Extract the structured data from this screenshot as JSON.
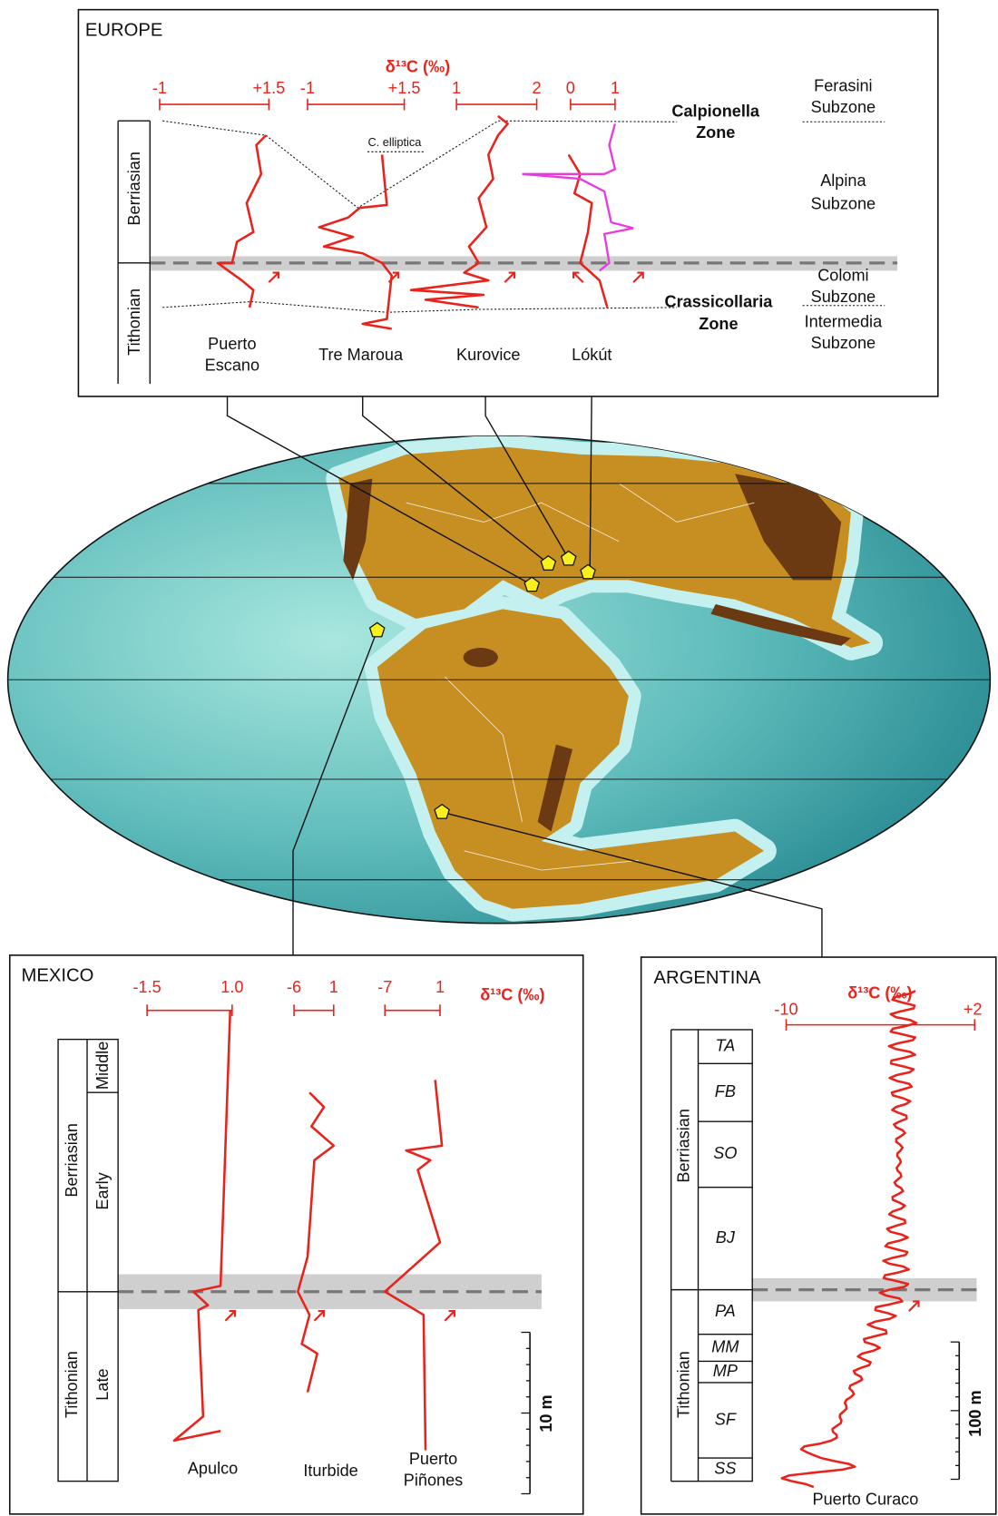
{
  "europe": {
    "title": "EUROPE",
    "axis_label": "δ¹³C (‰)",
    "scales": [
      [
        "-1",
        "+1.5"
      ],
      [
        "-1",
        "+1.5"
      ],
      [
        "1",
        "2"
      ],
      [
        "0",
        "1"
      ]
    ],
    "stages": [
      "Berriasian",
      "Tithonian"
    ],
    "annotation": "C. elliptica",
    "sections": [
      [
        "Puerto",
        "Escano"
      ],
      [
        "Tre Maroua"
      ],
      [
        "Kurovice"
      ],
      [
        "Lókút"
      ]
    ],
    "zones": [
      [
        "Calpionella",
        "Zone"
      ],
      [
        "Crassicollaria",
        "Zone"
      ]
    ],
    "subzones": [
      [
        "Ferasini",
        "Subzone"
      ],
      [
        "Alpina",
        "Subzone"
      ],
      [
        "Colomi",
        "Subzone"
      ],
      [
        "Intermedia",
        "Subzone"
      ]
    ]
  },
  "mexico": {
    "title": "MEXICO",
    "axis_label": "δ¹³C (‰)",
    "scales": [
      [
        "-1.5",
        "1.0"
      ],
      [
        "-6",
        "1"
      ],
      [
        "-7",
        "1"
      ]
    ],
    "stages": [
      "Berriasian",
      "Tithonian"
    ],
    "substages": [
      "Middle",
      "Early",
      "Late"
    ],
    "sections": [
      [
        "Apulco"
      ],
      [
        "Iturbide"
      ],
      [
        "Puerto",
        "Piñones"
      ]
    ],
    "scale_bar": "10 m"
  },
  "argentina": {
    "title": "ARGENTINA",
    "axis_label": "δ¹³C (‰)",
    "scale": [
      "-10",
      "+2"
    ],
    "stages": [
      "Berriasian",
      "Tithonian"
    ],
    "zones": [
      "TA",
      "FB",
      "SO",
      "BJ",
      "PA",
      "MM",
      "MP",
      "SF",
      "SS"
    ],
    "scale_bar": "100 m",
    "section": "Puerto Curaco"
  }
}
